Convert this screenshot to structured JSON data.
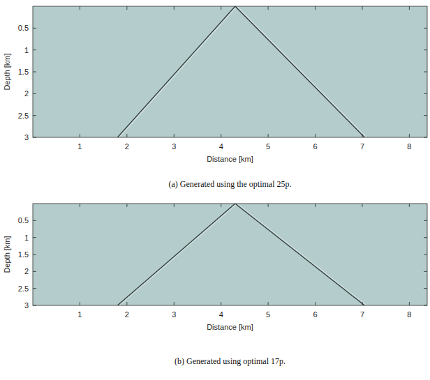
{
  "chart_data": [
    {
      "type": "line",
      "title": "(a) Generated using the optimal 25p.",
      "x_label": "Distance [km]",
      "y_label": "Depth [km]",
      "xlim": [
        0,
        8.38
      ],
      "ylim": [
        3,
        0
      ],
      "xticks": [
        1,
        2,
        3,
        4,
        5,
        6,
        7,
        8
      ],
      "yticks": [
        0.5,
        1,
        1.5,
        2,
        2.5,
        3
      ],
      "series": [
        {
          "color": "#2e3b3b",
          "x": [
            4.3,
            1.8
          ],
          "values": [
            0,
            3
          ]
        },
        {
          "color": "#2e3b3b",
          "x": [
            4.3,
            7.05
          ],
          "values": [
            0,
            3
          ]
        }
      ]
    },
    {
      "type": "line",
      "title": "(b) Generated using optimal 17p.",
      "x_label": "Distance [km]",
      "y_label": "Depth [km]",
      "xlim": [
        0,
        8.38
      ],
      "ylim": [
        3,
        0
      ],
      "xticks": [
        1,
        2,
        3,
        4,
        5,
        6,
        7,
        8
      ],
      "yticks": [
        0.5,
        1,
        1.5,
        2,
        2.5,
        3
      ],
      "series": [
        {
          "color": "#2e3b3b",
          "x": [
            4.3,
            1.8
          ],
          "values": [
            0,
            3
          ]
        },
        {
          "color": "#2e3b3b",
          "x": [
            4.3,
            7.05
          ],
          "values": [
            0,
            3
          ]
        }
      ]
    }
  ]
}
